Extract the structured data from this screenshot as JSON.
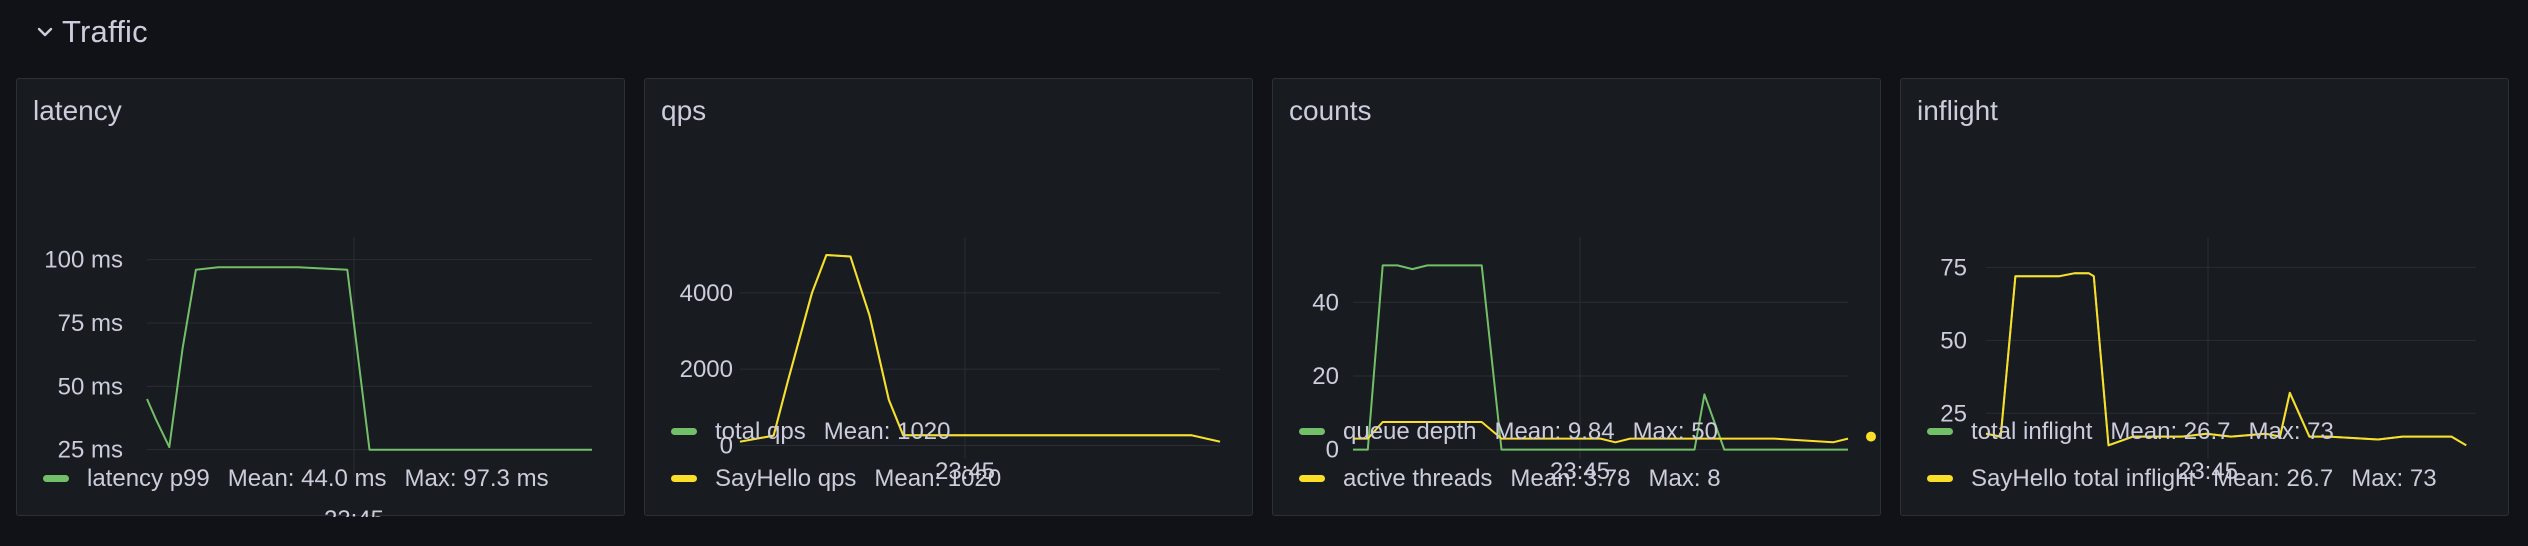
{
  "row": {
    "title": "Traffic"
  },
  "colors": {
    "green": "#73bf69",
    "yellow": "#fade2a",
    "grid": "#2a2d33"
  },
  "panels": [
    {
      "title": "latency",
      "legend": [
        {
          "name": "latency p99",
          "color": "#73bf69",
          "mean": "Mean: 44.0 ms",
          "max": "Max: 97.3 ms"
        }
      ]
    },
    {
      "title": "qps",
      "legend": [
        {
          "name": "total qps",
          "color": "#73bf69",
          "mean": "Mean: 1020",
          "max": ""
        },
        {
          "name": "SayHello qps",
          "color": "#fade2a",
          "mean": "Mean: 1020",
          "max": ""
        }
      ]
    },
    {
      "title": "counts",
      "legend": [
        {
          "name": "queue depth",
          "color": "#73bf69",
          "mean": "Mean: 9.84",
          "max": "Max: 50"
        },
        {
          "name": "active threads",
          "color": "#fade2a",
          "mean": "Mean: 3.78",
          "max": "Max: 8"
        }
      ]
    },
    {
      "title": "inflight",
      "legend": [
        {
          "name": "total inflight",
          "color": "#73bf69",
          "mean": "Mean: 26.7",
          "max": "Max: 73"
        },
        {
          "name": "SayHello total inflight",
          "color": "#fade2a",
          "mean": "Mean: 26.7",
          "max": "Max: 73"
        }
      ]
    }
  ],
  "chart_data": [
    {
      "type": "line",
      "title": "latency",
      "ylim": [
        15,
        105
      ],
      "yticks": [
        25,
        50,
        75,
        100
      ],
      "ytick_labels": [
        "25 ms",
        "50 ms",
        "75 ms",
        "100 ms"
      ],
      "xtick_labels": [
        "23:45"
      ],
      "grid": true,
      "legend_position": "bottom",
      "series": [
        {
          "name": "latency p99",
          "color": "#73bf69",
          "x": [
            0,
            2,
            5,
            8,
            11,
            16,
            22,
            26,
            34,
            45,
            50,
            60,
            80,
            100
          ],
          "y": [
            45,
            37,
            26,
            65,
            96,
            97,
            97,
            97,
            97,
            96,
            25,
            25,
            25,
            25
          ]
        }
      ]
    },
    {
      "type": "line",
      "title": "qps",
      "ylim": [
        -300,
        5200
      ],
      "yticks": [
        0,
        2000,
        4000
      ],
      "ytick_labels": [
        "0",
        "2000",
        "4000"
      ],
      "xtick_labels": [
        "23:45"
      ],
      "grid": true,
      "legend_position": "bottom",
      "series": [
        {
          "name": "total qps",
          "color": "#73bf69",
          "x": [
            0,
            7,
            10,
            15,
            18,
            23,
            27,
            31,
            34,
            50,
            70,
            94,
            100
          ],
          "y": [
            100,
            260,
            1700,
            4000,
            4990,
            4950,
            3400,
            1200,
            270,
            270,
            270,
            270,
            100
          ]
        },
        {
          "name": "SayHello qps",
          "color": "#fade2a",
          "x": [
            0,
            7,
            10,
            15,
            18,
            23,
            27,
            31,
            34,
            50,
            70,
            94,
            100
          ],
          "y": [
            100,
            260,
            1700,
            4000,
            4990,
            4950,
            3400,
            1200,
            270,
            270,
            270,
            270,
            100
          ]
        }
      ]
    },
    {
      "type": "line",
      "title": "counts",
      "ylim": [
        -2,
        55
      ],
      "yticks": [
        0,
        20,
        40
      ],
      "ytick_labels": [
        "0",
        "20",
        "40"
      ],
      "xtick_labels": [
        "23:45"
      ],
      "grid": true,
      "legend_position": "bottom",
      "series": [
        {
          "name": "queue depth",
          "color": "#73bf69",
          "x": [
            0,
            3,
            6,
            9,
            12,
            15,
            22,
            26,
            30,
            50,
            65,
            69,
            71,
            75,
            90,
            100
          ],
          "y": [
            0,
            0,
            50,
            50,
            49,
            50,
            50,
            50,
            0,
            0,
            0,
            0,
            15,
            0,
            0,
            0
          ]
        },
        {
          "name": "active threads",
          "color": "#fade2a",
          "x": [
            0,
            3,
            6,
            15,
            26,
            30,
            50,
            53,
            56,
            60,
            70,
            85,
            97,
            100
          ],
          "y": [
            3,
            3,
            7.5,
            7.5,
            7.5,
            3,
            3,
            2,
            3,
            3,
            3,
            3,
            2,
            3
          ]
        }
      ]
    },
    {
      "type": "line",
      "title": "inflight",
      "ylim": [
        10,
        82
      ],
      "yticks": [
        25,
        50,
        75
      ],
      "ytick_labels": [
        "25",
        "50",
        "75"
      ],
      "xtick_labels": [
        "23:45"
      ],
      "grid": true,
      "legend_position": "bottom",
      "series": [
        {
          "name": "total inflight",
          "color": "#73bf69",
          "x": [
            0,
            3,
            6,
            10,
            15,
            18,
            21,
            22,
            25,
            30,
            40,
            45,
            50,
            57,
            60,
            62,
            66,
            70,
            80,
            85,
            90,
            95,
            98
          ],
          "y": [
            18,
            17,
            72,
            72,
            72,
            73,
            73,
            72,
            14,
            17,
            17,
            18,
            17,
            18,
            17,
            32,
            17,
            17,
            16,
            17,
            17,
            17,
            14
          ]
        },
        {
          "name": "SayHello total inflight",
          "color": "#fade2a",
          "x": [
            0,
            3,
            6,
            10,
            15,
            18,
            21,
            22,
            25,
            30,
            40,
            45,
            50,
            57,
            60,
            62,
            66,
            70,
            80,
            85,
            90,
            95,
            98
          ],
          "y": [
            18,
            17,
            72,
            72,
            72,
            73,
            73,
            72,
            14,
            17,
            17,
            18,
            17,
            18,
            17,
            32,
            17,
            17,
            16,
            17,
            17,
            17,
            14
          ]
        }
      ]
    }
  ]
}
